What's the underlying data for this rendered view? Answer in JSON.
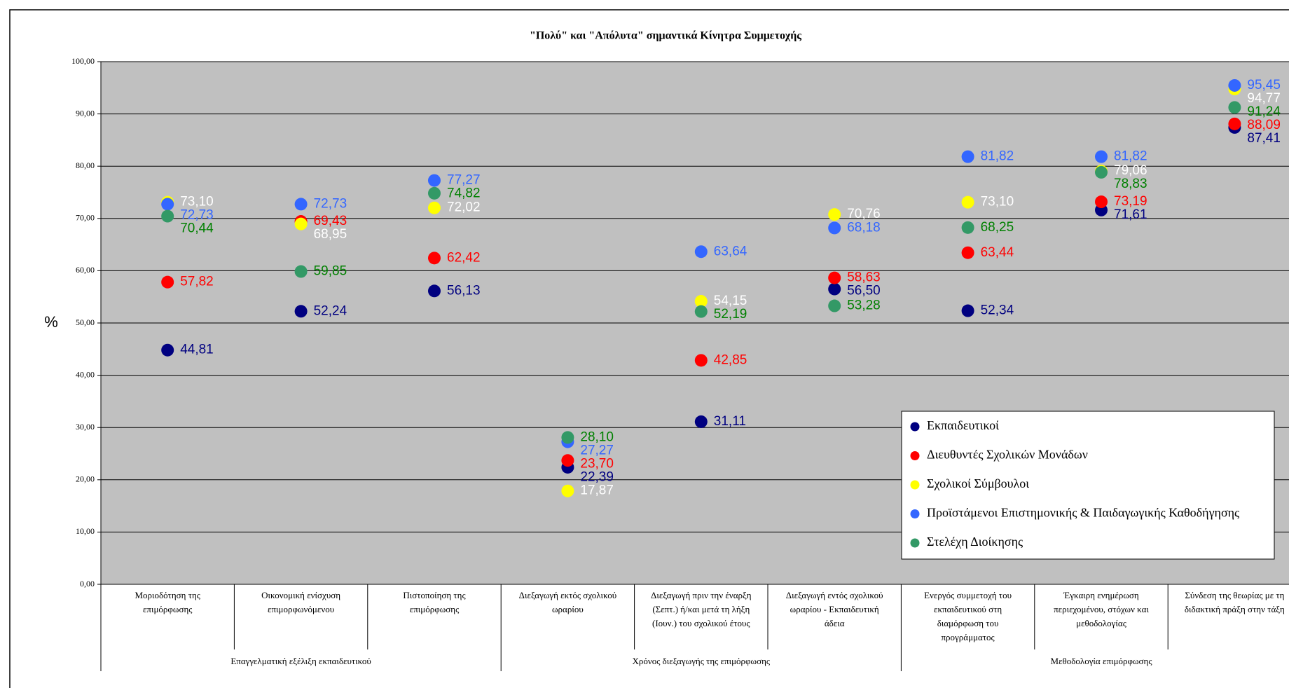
{
  "chart_data": {
    "type": "dot",
    "title": "\"Πολύ\" και \"Απόλυτα\" σημαντικά Κίνητρα Συμμετοχής",
    "y_label": "%",
    "ylim": [
      0,
      100
    ],
    "yticks": [
      {
        "value": 0,
        "label": "0,00"
      },
      {
        "value": 10,
        "label": "10,00"
      },
      {
        "value": 20,
        "label": "20,00"
      },
      {
        "value": 30,
        "label": "30,00"
      },
      {
        "value": 40,
        "label": "40,00"
      },
      {
        "value": 50,
        "label": "50,00"
      },
      {
        "value": 60,
        "label": "60,00"
      },
      {
        "value": 70,
        "label": "70,00"
      },
      {
        "value": 80,
        "label": "80,00"
      },
      {
        "value": 90,
        "label": "90,00"
      },
      {
        "value": 100,
        "label": "100,00"
      }
    ],
    "grid": true,
    "categories": [
      [
        "Μοριοδότηση της",
        "επιμόρφωσης"
      ],
      [
        "Οικονομική ενίσχυση",
        "επιμορφωνόμενου"
      ],
      [
        "Πιστοποίηση της",
        "επιμόρφωσης"
      ],
      [
        "Διεξαγωγή εκτός σχολικού",
        "ωραρίου"
      ],
      [
        "Διεξαγωγή πριν την έναρξη",
        "(Σεπτ.) ή/και μετά τη λήξη",
        "(Ιουν.) του σχολικού έτους"
      ],
      [
        "Διεξαγωγή εντός σχολικού",
        "ωραρίου - Εκπαιδευτική",
        "άδεια"
      ],
      [
        "Ενεργός συμμετοχή του",
        "εκπαιδευτικού στη",
        "διαμόρφωση του",
        "προγράμματος"
      ],
      [
        "Έγκαιρη ενημέρωση",
        "περιεχομένου, στόχων και",
        "μεθοδολογίας"
      ],
      [
        "Σύνδεση της θεωρίας με τη",
        "διδακτική πράξη στην τάξη"
      ]
    ],
    "groups": [
      {
        "name": "Επαγγελματική εξέλιξη εκπαιδευτικού",
        "size": 3
      },
      {
        "name": "Χρόνος διεξαγωγής της επιμόρφωσης",
        "size": 3
      },
      {
        "name": "Μεθοδολογία επιμόρφωσης",
        "size": 3
      }
    ],
    "legend_position": "lower right",
    "series": [
      {
        "name": "Εκπαιδευτικοί",
        "color": "#000080",
        "label_color": "#000080",
        "values": [
          44.81,
          52.24,
          56.13,
          22.39,
          31.11,
          56.5,
          52.34,
          71.61,
          87.41
        ],
        "value_labels": [
          "44,81",
          "52,24",
          "56,13",
          "22,39",
          "31,11",
          "56,50",
          "52,34",
          "71,61",
          "87,41"
        ]
      },
      {
        "name": "Διευθυντές Σχολικών Μονάδων",
        "color": "#ff0000",
        "label_color": "#ff0000",
        "values": [
          57.82,
          69.43,
          62.42,
          23.7,
          42.85,
          58.63,
          63.44,
          73.19,
          88.09
        ],
        "value_labels": [
          "57,82",
          "69,43",
          "62,42",
          "23,70",
          "42,85",
          "58,63",
          "63,44",
          "73,19",
          "88,09"
        ]
      },
      {
        "name": "Σχολικοί Σύμβουλοι",
        "color": "#ffff00",
        "label_color": "#ffffff",
        "values": [
          73.1,
          68.95,
          72.02,
          17.87,
          54.15,
          70.76,
          73.1,
          79.06,
          94.77
        ],
        "value_labels": [
          "73,10",
          "68,95",
          "72,02",
          "17,87",
          "54,15",
          "70,76",
          "73,10",
          "79,06",
          "94,77"
        ]
      },
      {
        "name": "Προϊστάμενοι Επιστημονικής & Παιδαγωγικής Καθοδήγησης",
        "color": "#3366ff",
        "label_color": "#3366ff",
        "values": [
          72.73,
          72.73,
          77.27,
          27.27,
          63.64,
          68.18,
          81.82,
          81.82,
          95.45
        ],
        "value_labels": [
          "72,73",
          "72,73",
          "77,27",
          "27,27",
          "63,64",
          "68,18",
          "81,82",
          "81,82",
          "95,45"
        ]
      },
      {
        "name": "Στελέχη Διοίκησης",
        "color": "#339966",
        "label_color": "#008000",
        "values": [
          70.44,
          59.85,
          74.82,
          28.1,
          52.19,
          53.28,
          68.25,
          78.83,
          91.24
        ],
        "value_labels": [
          "70,44",
          "59,85",
          "74,82",
          "28,10",
          "52,19",
          "53,28",
          "68,25",
          "78,83",
          "91,24"
        ]
      }
    ]
  }
}
